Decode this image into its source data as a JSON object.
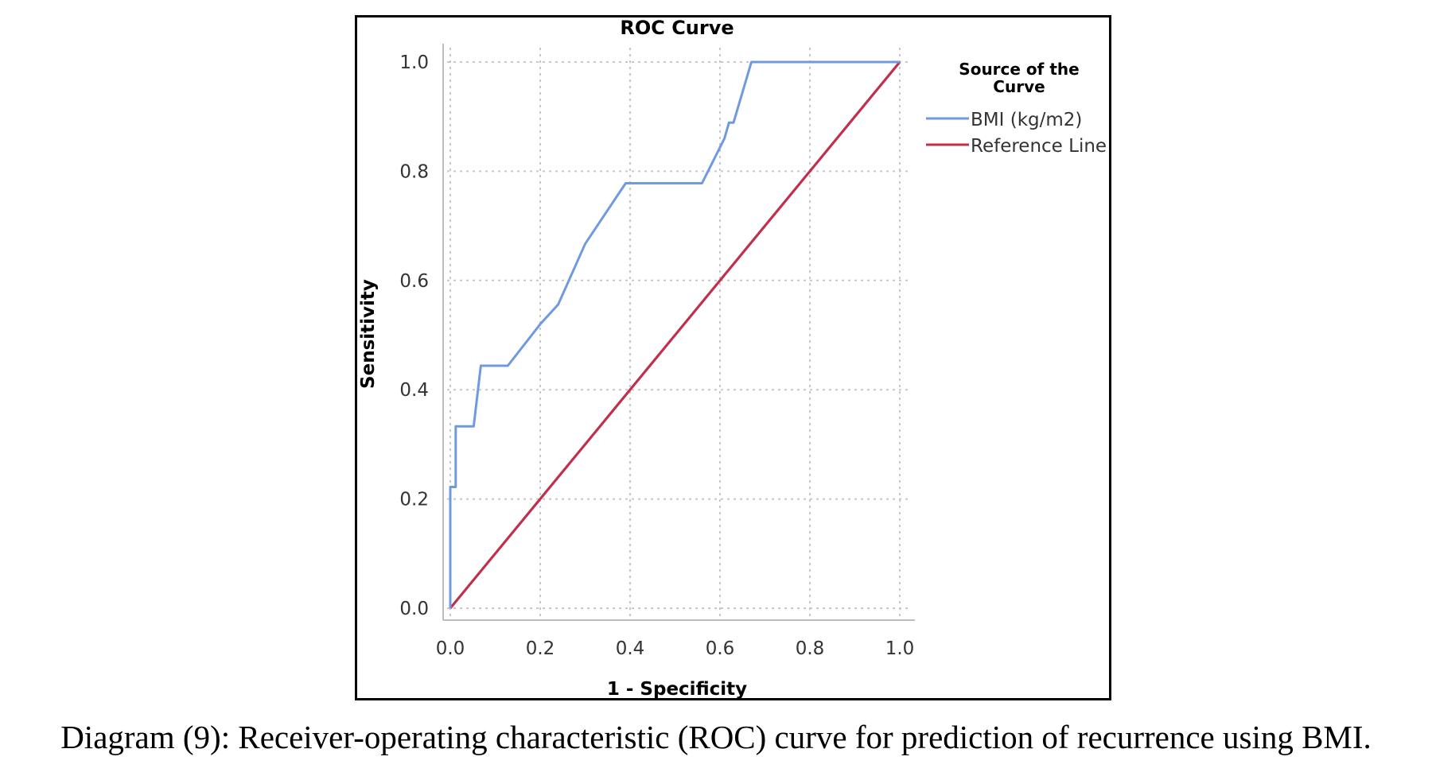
{
  "chart_data": {
    "type": "line",
    "title": "ROC Curve",
    "xlabel": "1 - Specificity",
    "ylabel": "Sensitivity",
    "xlim": [
      0,
      1
    ],
    "ylim": [
      0,
      1
    ],
    "x_ticks": [
      "0.0",
      "0.2",
      "0.4",
      "0.6",
      "0.8",
      "1.0"
    ],
    "y_ticks": [
      "0.0",
      "0.2",
      "0.4",
      "0.6",
      "0.8",
      "1.0"
    ],
    "grid": true,
    "legend": {
      "title_lines": [
        "Source of the",
        "Curve"
      ],
      "placement": "right"
    },
    "series": [
      {
        "name": "BMI (kg/m2)",
        "color": "#6f9ae0",
        "x": [
          0.0,
          0.0,
          0.004,
          0.004,
          0.012,
          0.012,
          0.016,
          0.016,
          0.052,
          0.052,
          0.068,
          0.068,
          0.128,
          0.128,
          0.2,
          0.24,
          0.3,
          0.39,
          0.39,
          0.56,
          0.56,
          0.61,
          0.62,
          0.63,
          0.63,
          0.67,
          0.67,
          1.0
        ],
        "y": [
          0.0,
          0.222,
          0.222,
          0.222,
          0.222,
          0.333,
          0.333,
          0.333,
          0.333,
          0.333,
          0.444,
          0.444,
          0.444,
          0.444,
          0.52,
          0.556,
          0.667,
          0.778,
          0.778,
          0.778,
          0.778,
          0.86,
          0.889,
          0.889,
          0.889,
          1.0,
          1.0,
          1.0
        ]
      },
      {
        "name": "Reference Line",
        "color": "#c0304c",
        "x": [
          0.0,
          1.0
        ],
        "y": [
          0.0,
          1.0
        ]
      }
    ]
  },
  "caption": "Diagram (9): Receiver-operating characteristic (ROC) curve for prediction of recurrence using BMI."
}
